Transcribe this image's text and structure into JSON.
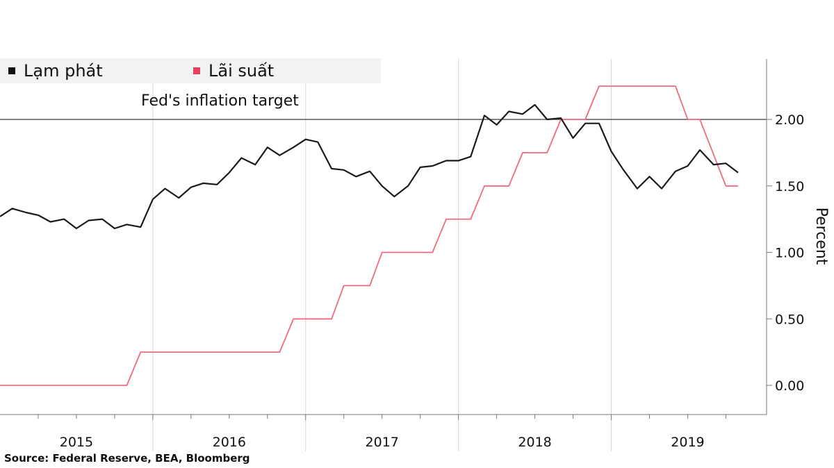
{
  "chart_data": {
    "type": "line",
    "title": "",
    "xlabel": "",
    "ylabel": "Percent",
    "ylim": [
      -0.2,
      2.45
    ],
    "yticks": [
      "0.00",
      "0.50",
      "1.00",
      "1.50",
      "2.00"
    ],
    "x_range": [
      2015.0,
      2019.98
    ],
    "year_labels": [
      "2015",
      "2016",
      "2017",
      "2018",
      "2019"
    ],
    "year_boundaries": [
      2016,
      2017,
      2018,
      2019
    ],
    "annotation": "Fed's inflation target",
    "target_value": 2.0,
    "legend": [
      "Lạm phát",
      "Lãi suất"
    ],
    "series": [
      {
        "name": "Lạm phát",
        "color": "#1a1a1a",
        "points": [
          [
            2015.0,
            1.27
          ],
          [
            2015.08,
            1.33
          ],
          [
            2015.17,
            1.3
          ],
          [
            2015.25,
            1.28
          ],
          [
            2015.33,
            1.23
          ],
          [
            2015.42,
            1.25
          ],
          [
            2015.5,
            1.18
          ],
          [
            2015.58,
            1.24
          ],
          [
            2015.67,
            1.25
          ],
          [
            2015.75,
            1.18
          ],
          [
            2015.83,
            1.21
          ],
          [
            2015.92,
            1.19
          ],
          [
            2016.0,
            1.4
          ],
          [
            2016.08,
            1.48
          ],
          [
            2016.17,
            1.41
          ],
          [
            2016.25,
            1.49
          ],
          [
            2016.33,
            1.52
          ],
          [
            2016.42,
            1.51
          ],
          [
            2016.5,
            1.6
          ],
          [
            2016.58,
            1.71
          ],
          [
            2016.67,
            1.66
          ],
          [
            2016.75,
            1.79
          ],
          [
            2016.83,
            1.73
          ],
          [
            2016.92,
            1.79
          ],
          [
            2017.0,
            1.85
          ],
          [
            2017.08,
            1.83
          ],
          [
            2017.17,
            1.63
          ],
          [
            2017.25,
            1.62
          ],
          [
            2017.33,
            1.57
          ],
          [
            2017.42,
            1.61
          ],
          [
            2017.5,
            1.5
          ],
          [
            2017.58,
            1.42
          ],
          [
            2017.67,
            1.5
          ],
          [
            2017.75,
            1.64
          ],
          [
            2017.83,
            1.65
          ],
          [
            2017.92,
            1.69
          ],
          [
            2018.0,
            1.69
          ],
          [
            2018.08,
            1.72
          ],
          [
            2018.17,
            2.03
          ],
          [
            2018.25,
            1.96
          ],
          [
            2018.33,
            2.06
          ],
          [
            2018.42,
            2.04
          ],
          [
            2018.5,
            2.11
          ],
          [
            2018.58,
            2.0
          ],
          [
            2018.67,
            2.01
          ],
          [
            2018.75,
            1.86
          ],
          [
            2018.83,
            1.97
          ],
          [
            2018.92,
            1.97
          ],
          [
            2019.0,
            1.76
          ],
          [
            2019.08,
            1.62
          ],
          [
            2019.17,
            1.48
          ],
          [
            2019.25,
            1.57
          ],
          [
            2019.33,
            1.48
          ],
          [
            2019.42,
            1.61
          ],
          [
            2019.5,
            1.65
          ],
          [
            2019.58,
            1.77
          ],
          [
            2019.67,
            1.66
          ],
          [
            2019.75,
            1.67
          ],
          [
            2019.83,
            1.6
          ]
        ]
      },
      {
        "name": "Lãi suất",
        "color": "#f06a80",
        "points": [
          [
            2015.0,
            0.0
          ],
          [
            2015.83,
            0.0
          ],
          [
            2015.92,
            0.25
          ],
          [
            2016.83,
            0.25
          ],
          [
            2016.92,
            0.5
          ],
          [
            2017.17,
            0.5
          ],
          [
            2017.25,
            0.75
          ],
          [
            2017.42,
            0.75
          ],
          [
            2017.5,
            1.0
          ],
          [
            2017.83,
            1.0
          ],
          [
            2017.92,
            1.25
          ],
          [
            2018.08,
            1.25
          ],
          [
            2018.17,
            1.5
          ],
          [
            2018.33,
            1.5
          ],
          [
            2018.42,
            1.75
          ],
          [
            2018.58,
            1.75
          ],
          [
            2018.67,
            2.0
          ],
          [
            2018.83,
            2.0
          ],
          [
            2018.92,
            2.25
          ],
          [
            2019.42,
            2.25
          ],
          [
            2019.5,
            2.0
          ],
          [
            2019.58,
            2.0
          ],
          [
            2019.75,
            1.5
          ],
          [
            2019.83,
            1.5
          ]
        ]
      }
    ]
  },
  "legend": {
    "inflation_label": "Lạm phát",
    "inflation_color": "#111111",
    "rate_label": "Lãi suất",
    "rate_color": "#e8405c"
  },
  "source": "Source: Federal Reserve, BEA, Bloomberg"
}
